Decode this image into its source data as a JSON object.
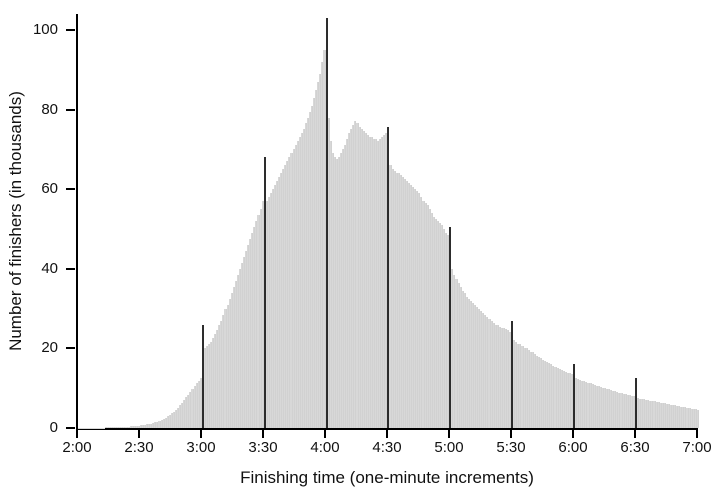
{
  "chart_data": {
    "type": "bar",
    "title": "",
    "xlabel": "Finishing time (one-minute increments)",
    "ylabel": "Number of finishers (in thousands)",
    "x_tick_labels": [
      "2:00",
      "2:30",
      "3:00",
      "3:30",
      "4:00",
      "4:30",
      "5:00",
      "5:30",
      "6:00",
      "6:30",
      "7:00"
    ],
    "y_ticks": [
      0,
      20,
      40,
      60,
      80,
      100
    ],
    "ylim": [
      0,
      104
    ],
    "x_start": "2:00",
    "x_end": "7:00",
    "bin_width_minutes": 1,
    "grid": false,
    "legend": false,
    "bar_color": "#d8d8d8",
    "spike_color": "#2e2e2e",
    "axis_color": "#000000",
    "text_color": "#111111",
    "spike_minutes": [
      "3:00",
      "3:30",
      "4:00",
      "4:30",
      "5:00",
      "5:30",
      "6:00",
      "6:30"
    ],
    "values": [
      0.05,
      0.05,
      0.05,
      0.06,
      0.06,
      0.07,
      0.07,
      0.08,
      0.08,
      0.09,
      0.1,
      0.11,
      0.12,
      0.13,
      0.14,
      0.15,
      0.17,
      0.19,
      0.21,
      0.23,
      0.25,
      0.28,
      0.31,
      0.34,
      0.38,
      0.42,
      0.46,
      0.5,
      0.55,
      0.6,
      0.65,
      0.7,
      0.8,
      0.9,
      1.0,
      1.1,
      1.25,
      1.4,
      1.6,
      1.8,
      2.0,
      2.3,
      2.6,
      2.9,
      3.3,
      3.7,
      4.1,
      4.6,
      5.1,
      5.7,
      6.3,
      7.0,
      7.7,
      8.4,
      9.1,
      9.8,
      10.5,
      11.2,
      11.9,
      12.6,
      26.0,
      20.0,
      20.5,
      21.0,
      21.5,
      22.5,
      23.5,
      24.5,
      26.0,
      27.0,
      28.5,
      30.0,
      31.0,
      32.5,
      34.0,
      35.5,
      37.0,
      38.5,
      40.0,
      41.5,
      43.0,
      44.5,
      46.0,
      47.5,
      49.0,
      50.5,
      52.0,
      53.5,
      55.0,
      57.0,
      68.0,
      57.0,
      58.0,
      59.0,
      60.0,
      61.0,
      62.0,
      63.0,
      64.0,
      65.0,
      66.0,
      67.0,
      68.0,
      69.0,
      70.0,
      71.0,
      72.0,
      73.0,
      74.0,
      75.0,
      76.5,
      78.0,
      79.5,
      81.0,
      83.0,
      85.0,
      87.0,
      89.0,
      92.0,
      95.0,
      103.0,
      78.0,
      72.0,
      69.0,
      68.0,
      67.5,
      68.0,
      69.0,
      70.0,
      71.0,
      72.5,
      74.0,
      75.0,
      76.0,
      77.0,
      76.5,
      75.5,
      75.0,
      74.5,
      74.0,
      73.5,
      73.0,
      73.0,
      72.5,
      72.5,
      72.0,
      72.5,
      73.0,
      73.5,
      74.0,
      75.5,
      66.0,
      65.0,
      64.5,
      64.0,
      64.0,
      63.5,
      63.0,
      62.5,
      62.0,
      61.5,
      61.0,
      60.5,
      60.0,
      59.5,
      59.0,
      58.0,
      57.0,
      56.5,
      56.0,
      55.0,
      54.0,
      53.0,
      52.5,
      52.0,
      51.5,
      51.0,
      50.0,
      49.0,
      48.5,
      50.5,
      40.0,
      38.5,
      37.5,
      36.5,
      35.5,
      34.5,
      34.0,
      33.0,
      32.5,
      32.0,
      31.5,
      31.0,
      30.5,
      30.0,
      29.5,
      29.0,
      28.5,
      28.0,
      27.5,
      27.0,
      26.5,
      26.0,
      25.8,
      25.5,
      25.2,
      25.0,
      24.8,
      24.5,
      24.2,
      27.0,
      22.0,
      21.5,
      21.2,
      21.0,
      20.5,
      20.2,
      20.0,
      19.5,
      19.2,
      19.0,
      18.6,
      18.2,
      17.9,
      17.6,
      17.2,
      16.9,
      16.6,
      16.3,
      16.0,
      15.7,
      15.4,
      15.1,
      14.9,
      14.6,
      14.4,
      14.1,
      13.9,
      13.7,
      13.5,
      16.0,
      12.5,
      12.3,
      12.1,
      11.9,
      11.7,
      11.5,
      11.3,
      11.2,
      11.0,
      10.8,
      10.6,
      10.5,
      10.3,
      10.1,
      10.0,
      9.8,
      9.7,
      9.5,
      9.4,
      9.2,
      9.1,
      8.9,
      8.8,
      8.6,
      8.5,
      8.4,
      8.2,
      8.1,
      8.0,
      12.5,
      7.5,
      7.4,
      7.3,
      7.2,
      7.1,
      7.0,
      6.9,
      6.8,
      6.7,
      6.6,
      6.5,
      6.4,
      6.3,
      6.2,
      6.1,
      6.0,
      5.9,
      5.8,
      5.7,
      5.6,
      5.5,
      5.4,
      5.3,
      5.2,
      5.1,
      5.0,
      4.9,
      4.8,
      4.7,
      4.6
    ]
  }
}
